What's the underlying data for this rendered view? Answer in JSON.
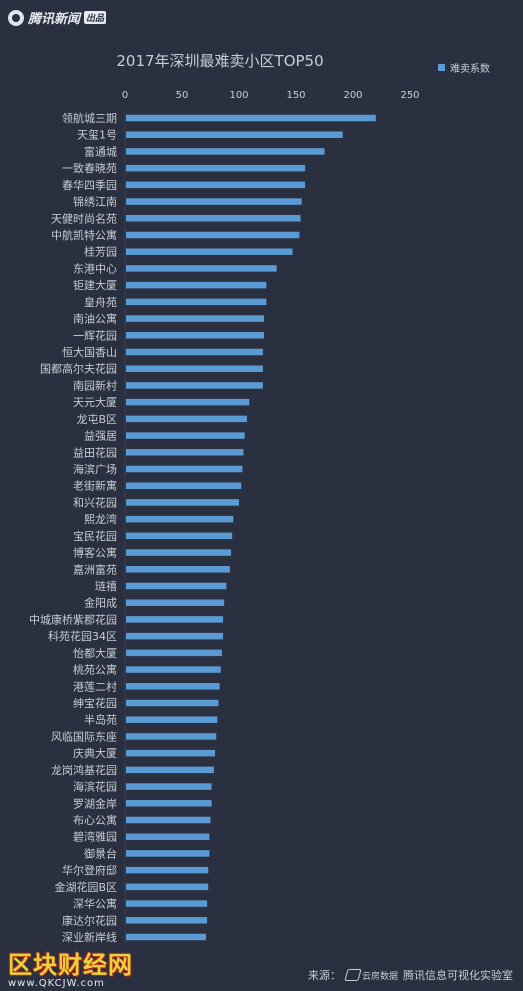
{
  "brand": {
    "name": "腾讯新闻",
    "tag": "出品"
  },
  "footer": {
    "source_label": "来源：",
    "logo_text": "云房数据",
    "lab": "腾讯信息可视化实验室"
  },
  "watermark": {
    "title": "区块财经网",
    "url": "www.QKCJW.com"
  },
  "colors": {
    "background": "#2b3040",
    "bar": "#5b9bd5",
    "text": "#c8ccd6",
    "grid": "#3a4052"
  },
  "chart_data": {
    "type": "bar",
    "orientation": "horizontal",
    "title": "2017年深圳最难卖小区TOP50",
    "legend": {
      "label": "难卖系数",
      "position": "top-right"
    },
    "xlim": [
      0,
      250
    ],
    "xticks": [
      0,
      50,
      100,
      150,
      200,
      250
    ],
    "grid": false,
    "categories": [
      "领航城三期",
      "天玺1号",
      "富通城",
      "一致春晓苑",
      "春华四季园",
      "锦绣江南",
      "天健时尚名苑",
      "中航凯特公寓",
      "桂芳园",
      "东港中心",
      "钜建大厦",
      "皇舟苑",
      "南油公寓",
      "一辉花园",
      "恒大国香山",
      "国都高尔夫花园",
      "南园新村",
      "天元大厦",
      "龙屯B区",
      "益强居",
      "益田花园",
      "海滨广场",
      "老街新寓",
      "和兴花园",
      "熙龙湾",
      "宝民花园",
      "博客公寓",
      "嘉洲富苑",
      "琏禧",
      "金阳成",
      "中城康桥紫郡花园",
      "科苑花园34区",
      "怡都大厦",
      "桃苑公寓",
      "港莲二村",
      "绅宝花园",
      "半岛苑",
      "风临国际东座",
      "庆典大厦",
      "龙岗鸿基花园",
      "海滨花园",
      "罗湖金岸",
      "布心公寓",
      "碧湾雅园",
      "御景台",
      "华尔登府邸",
      "金湖花园B区",
      "深华公寓",
      "康达尔花园",
      "深业新岸线"
    ],
    "values": [
      220,
      191,
      175,
      158,
      158,
      155,
      154,
      153,
      147,
      133,
      124,
      124,
      122,
      122,
      121,
      121,
      121,
      109,
      107,
      105,
      104,
      103,
      102,
      100,
      95,
      94,
      93,
      92,
      89,
      87,
      86,
      86,
      85,
      84,
      83,
      82,
      81,
      80,
      79,
      78,
      76,
      76,
      75,
      74,
      74,
      73,
      73,
      72,
      72,
      71
    ]
  }
}
